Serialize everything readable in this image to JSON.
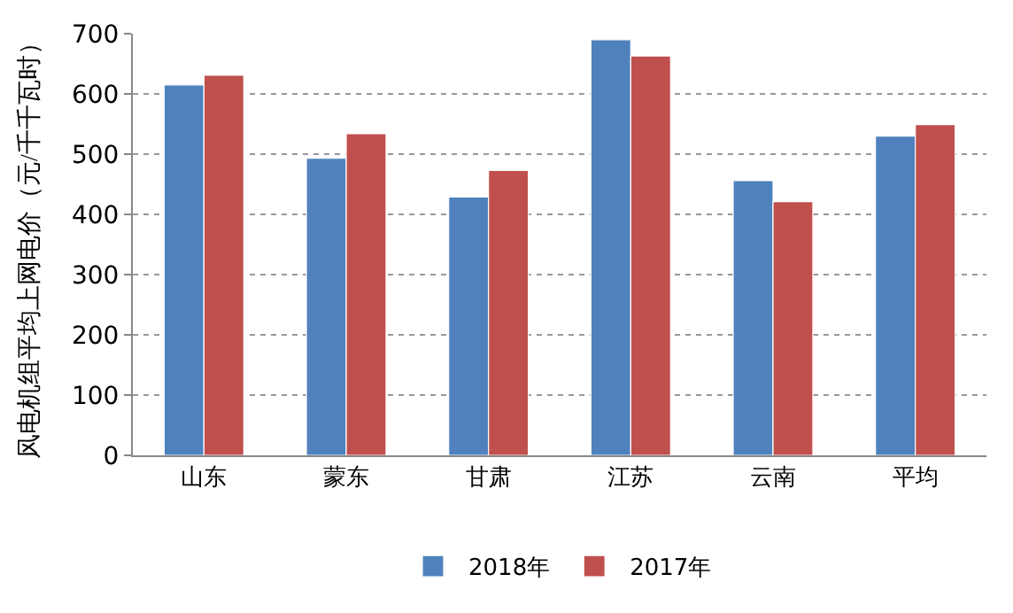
{
  "chart_data": {
    "type": "bar",
    "ylabel": "风电机组平均上网电价（元/千千瓦时）",
    "categories": [
      "山东",
      "蒙东",
      "甘肃",
      "江苏",
      "云南",
      "平均"
    ],
    "series": [
      {
        "name": "2018年",
        "color": "#4f81bd",
        "values": [
          615,
          493,
          429,
          690,
          456,
          530
        ]
      },
      {
        "name": "2017年",
        "color": "#c0504d",
        "values": [
          631,
          534,
          473,
          663,
          421,
          549
        ]
      }
    ],
    "ylim": [
      0,
      700
    ],
    "yticks": [
      0,
      100,
      200,
      300,
      400,
      500,
      600,
      700
    ],
    "grid": "y",
    "legend": "bottom"
  }
}
